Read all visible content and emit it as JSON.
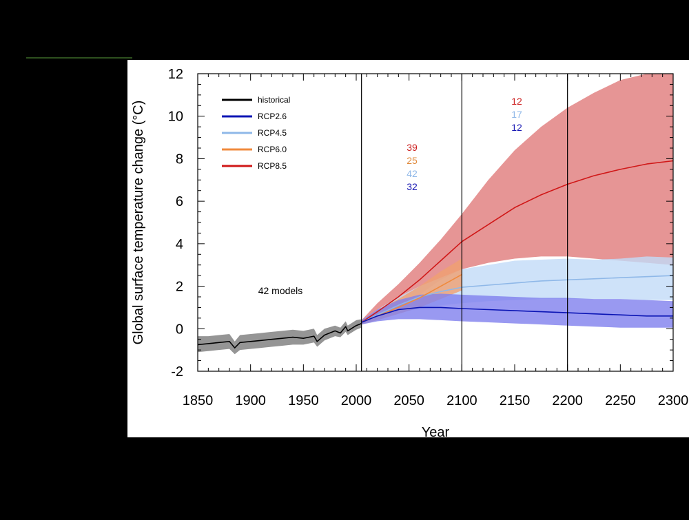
{
  "chart_data": {
    "type": "line",
    "xlabel": "Year",
    "ylabel": "Global surface temperature change (°C)",
    "xlim": [
      1850,
      2300
    ],
    "ylim": [
      -2,
      12
    ],
    "x_ticks": [
      1850,
      1900,
      1950,
      2000,
      2050,
      2100,
      2150,
      2200,
      2250,
      2300
    ],
    "y_ticks": [
      -2,
      0,
      2,
      4,
      6,
      8,
      10,
      12
    ],
    "dividers": [
      2005,
      2100,
      2200
    ],
    "annotation": "42 models",
    "legend": {
      "placement": "top-left",
      "entries": [
        {
          "label": "historical",
          "color": "#000000"
        },
        {
          "label": "RCP2.6",
          "color": "#0a14b4"
        },
        {
          "label": "RCP4.5",
          "color": "#8fb8e8"
        },
        {
          "label": "RCP6.0",
          "color": "#f08a3c"
        },
        {
          "label": "RCP8.5",
          "color": "#d01818"
        }
      ]
    },
    "model_counts_2006_2100": [
      {
        "series": "RCP8.5",
        "count": "39",
        "color": "#cc1f1f"
      },
      {
        "series": "RCP6.0",
        "count": "25",
        "color": "#e08a3c"
      },
      {
        "series": "RCP4.5",
        "count": "42",
        "color": "#8fb8e8"
      },
      {
        "series": "RCP2.6",
        "count": "32",
        "color": "#1a1ab4"
      }
    ],
    "model_counts_2101_2300": [
      {
        "series": "RCP8.5",
        "count": "12",
        "color": "#cc1f1f"
      },
      {
        "series": "RCP4.5",
        "count": "17",
        "color": "#8fb8e8"
      },
      {
        "series": "RCP2.6",
        "count": "12",
        "color": "#1a1ab4"
      }
    ],
    "series": [
      {
        "name": "historical",
        "color": "#000000",
        "band_color": "#7a7a7a",
        "x": [
          1850,
          1860,
          1870,
          1880,
          1885,
          1890,
          1900,
          1910,
          1920,
          1930,
          1940,
          1950,
          1960,
          1963,
          1970,
          1980,
          1985,
          1990,
          1992,
          2000,
          2005
        ],
        "y": [
          -0.75,
          -0.7,
          -0.65,
          -0.6,
          -0.9,
          -0.65,
          -0.6,
          -0.55,
          -0.5,
          -0.45,
          -0.4,
          -0.45,
          -0.35,
          -0.6,
          -0.3,
          -0.1,
          -0.2,
          0.1,
          -0.1,
          0.15,
          0.25
        ],
        "lower": [
          -1.1,
          -1.05,
          -1.0,
          -0.95,
          -1.2,
          -1.0,
          -0.95,
          -0.9,
          -0.85,
          -0.8,
          -0.75,
          -0.75,
          -0.65,
          -0.85,
          -0.55,
          -0.35,
          -0.4,
          -0.15,
          -0.3,
          -0.05,
          0.05
        ],
        "upper": [
          -0.35,
          -0.35,
          -0.3,
          -0.25,
          -0.6,
          -0.3,
          -0.25,
          -0.2,
          -0.15,
          -0.1,
          -0.05,
          -0.1,
          0.0,
          -0.3,
          0.0,
          0.15,
          0.05,
          0.35,
          0.15,
          0.4,
          0.45
        ]
      },
      {
        "name": "RCP8.5",
        "color": "#d01818",
        "band_color": "#e07a7a",
        "x": [
          2005,
          2020,
          2040,
          2060,
          2080,
          2100,
          2125,
          2150,
          2175,
          2200,
          2225,
          2250,
          2275,
          2300
        ],
        "y": [
          0.3,
          0.8,
          1.5,
          2.3,
          3.2,
          4.1,
          4.9,
          5.7,
          6.3,
          6.8,
          7.2,
          7.5,
          7.75,
          7.9
        ],
        "lower": [
          0.2,
          0.55,
          1.0,
          1.6,
          2.3,
          2.8,
          3.1,
          3.3,
          3.4,
          3.4,
          3.3,
          3.2,
          3.1,
          3.0
        ],
        "upper": [
          0.4,
          1.2,
          2.1,
          3.1,
          4.2,
          5.4,
          7.0,
          8.4,
          9.5,
          10.4,
          11.1,
          11.7,
          12.0,
          12.0
        ]
      },
      {
        "name": "RCP4.5",
        "color": "#8fb8e8",
        "band_color": "#c2dbf7",
        "x": [
          2005,
          2020,
          2040,
          2060,
          2080,
          2100,
          2125,
          2150,
          2175,
          2200,
          2225,
          2250,
          2275,
          2300
        ],
        "y": [
          0.3,
          0.65,
          1.1,
          1.5,
          1.75,
          1.95,
          2.05,
          2.15,
          2.25,
          2.3,
          2.35,
          2.4,
          2.45,
          2.5
        ],
        "lower": [
          0.2,
          0.45,
          0.75,
          0.95,
          1.1,
          1.2,
          1.3,
          1.35,
          1.4,
          1.4,
          1.4,
          1.4,
          1.35,
          1.35
        ],
        "upper": [
          0.4,
          0.9,
          1.5,
          2.0,
          2.4,
          2.8,
          3.0,
          3.2,
          3.25,
          3.3,
          3.25,
          3.3,
          3.4,
          3.35
        ]
      },
      {
        "name": "RCP6.0",
        "color": "#f08a3c",
        "band_color": "#f0a070",
        "x": [
          2005,
          2020,
          2040,
          2060,
          2080,
          2100
        ],
        "y": [
          0.3,
          0.6,
          1.0,
          1.45,
          2.0,
          2.55
        ],
        "lower": [
          0.2,
          0.4,
          0.7,
          1.0,
          1.4,
          1.8
        ],
        "upper": [
          0.4,
          0.85,
          1.4,
          2.0,
          2.7,
          3.3
        ]
      },
      {
        "name": "RCP2.6",
        "color": "#0a14b4",
        "band_color": "#8080ee",
        "x": [
          2005,
          2020,
          2040,
          2060,
          2080,
          2100,
          2125,
          2150,
          2175,
          2200,
          2225,
          2250,
          2275,
          2300
        ],
        "y": [
          0.3,
          0.6,
          0.9,
          1.0,
          1.0,
          0.95,
          0.9,
          0.85,
          0.8,
          0.75,
          0.7,
          0.65,
          0.6,
          0.6
        ],
        "lower": [
          0.2,
          0.35,
          0.45,
          0.45,
          0.4,
          0.35,
          0.3,
          0.25,
          0.2,
          0.15,
          0.1,
          0.05,
          0.05,
          0.05
        ],
        "upper": [
          0.4,
          0.9,
          1.35,
          1.6,
          1.65,
          1.6,
          1.55,
          1.5,
          1.45,
          1.45,
          1.4,
          1.4,
          1.35,
          1.3
        ]
      }
    ]
  }
}
